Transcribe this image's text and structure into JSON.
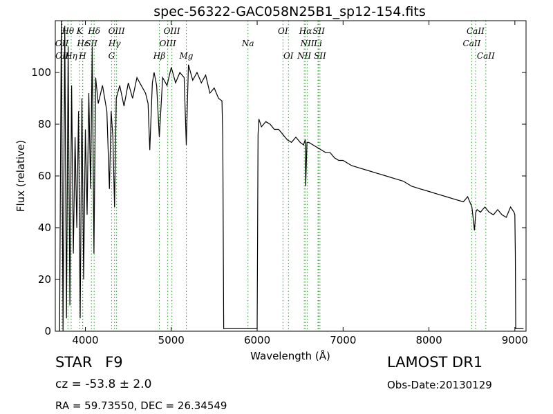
{
  "chart_data": {
    "type": "line",
    "title": "spec-56322-GAC058N25B1_sp12-154.fits",
    "xlabel": "Wavelength (Å)",
    "ylabel": "Flux (relative)",
    "xlim": [
      3650,
      9130
    ],
    "ylim": [
      0,
      120
    ],
    "xticks": [
      4000,
      5000,
      6000,
      7000,
      8000,
      9000
    ],
    "yticks": [
      0,
      20,
      40,
      60,
      80,
      100
    ],
    "grid": false,
    "line_color": "#000000",
    "marker_color": "#2ca02c",
    "emission_lines_top": [
      {
        "label": "Hθ",
        "x": 3797,
        "row": 1
      },
      {
        "label": "K",
        "x": 3934,
        "row": 1
      },
      {
        "label": "Hδ",
        "x": 4102,
        "row": 1
      },
      {
        "label": "OIII",
        "x": 4363,
        "row": 1
      },
      {
        "label": "OIII",
        "x": 5007,
        "row": 1
      },
      {
        "label": "OI",
        "x": 6300,
        "row": 1
      },
      {
        "label": "Hα",
        "x": 6563,
        "row": 1
      },
      {
        "label": "SII",
        "x": 6716,
        "row": 1
      },
      {
        "label": "CaII",
        "x": 8542,
        "row": 1
      },
      {
        "label": "OII",
        "x": 3727,
        "row": 2
      },
      {
        "label": "Hε",
        "x": 3970,
        "row": 2
      },
      {
        "label": "SII",
        "x": 4070,
        "row": 2
      },
      {
        "label": "Hγ",
        "x": 4340,
        "row": 2
      },
      {
        "label": "OIII",
        "x": 4959,
        "row": 2
      },
      {
        "label": "NII",
        "x": 6584,
        "row": 2
      },
      {
        "label": "Li",
        "x": 6708,
        "row": 2
      },
      {
        "label": "CaII",
        "x": 8498,
        "row": 2
      },
      {
        "label": "Na",
        "x": 5893,
        "row": 2
      },
      {
        "label": "OII",
        "x": 3729,
        "row": 3
      },
      {
        "label": "Hη",
        "x": 3835,
        "row": 3
      },
      {
        "label": "H",
        "x": 3968,
        "row": 3
      },
      {
        "label": "G",
        "x": 4305,
        "row": 3
      },
      {
        "label": "Hβ",
        "x": 4861,
        "row": 3
      },
      {
        "label": "Mg",
        "x": 5175,
        "row": 3
      },
      {
        "label": "OI",
        "x": 6364,
        "row": 3
      },
      {
        "label": "NII",
        "x": 6548,
        "row": 3
      },
      {
        "label": "SII",
        "x": 6731,
        "row": 3
      },
      {
        "label": "CaII",
        "x": 8662,
        "row": 3
      }
    ],
    "line_positions": [
      3727,
      3729,
      3797,
      3835,
      3934,
      3968,
      3970,
      4070,
      4102,
      4305,
      4340,
      4363,
      4861,
      4959,
      5007,
      5175,
      5893,
      6300,
      6364,
      6548,
      6563,
      6584,
      6708,
      6716,
      6731,
      8498,
      8542,
      8662
    ],
    "series": [
      {
        "x": [
          3700,
          3720,
          3740,
          3760,
          3780,
          3800,
          3820,
          3840,
          3860,
          3880,
          3900,
          3920,
          3940,
          3960,
          3980,
          4000,
          4020,
          4040,
          4060,
          4080,
          4100,
          4120,
          4150,
          4200,
          4250,
          4280,
          4300,
          4320,
          4340,
          4360,
          4400,
          4450,
          4500,
          4550,
          4600,
          4650,
          4700,
          4730,
          4750,
          4780,
          4800,
          4830,
          4861,
          4900,
          4950,
          5000,
          5050,
          5100,
          5150,
          5175,
          5200,
          5250,
          5300,
          5350,
          5400,
          5450,
          5500,
          5550,
          5590,
          5600,
          5610,
          5650,
          5700,
          5800,
          5900,
          6000,
          6005,
          6010,
          6020,
          6050,
          6100,
          6150,
          6200,
          6250,
          6300,
          6350,
          6400,
          6450,
          6500,
          6540,
          6560,
          6565,
          6580,
          6600,
          6650,
          6700,
          6750,
          6800,
          6850,
          6900,
          6950,
          7000,
          7100,
          7200,
          7300,
          7400,
          7500,
          7600,
          7700,
          7800,
          7900,
          8000,
          8100,
          8200,
          8300,
          8400,
          8450,
          8500,
          8530,
          8545,
          8560,
          8600,
          8650,
          8700,
          8750,
          8800,
          8850,
          8900,
          8950,
          8990,
          9000,
          9005,
          9010,
          9050,
          9100
        ],
        "y": [
          0,
          120,
          0,
          118,
          5,
          110,
          10,
          95,
          30,
          75,
          40,
          85,
          5,
          90,
          20,
          78,
          45,
          92,
          55,
          110,
          30,
          98,
          88,
          95,
          85,
          55,
          85,
          75,
          48,
          90,
          95,
          87,
          96,
          90,
          98,
          95,
          92,
          88,
          70,
          96,
          100,
          95,
          75,
          98,
          95,
          102,
          96,
          100,
          98,
          72,
          103,
          97,
          100,
          96,
          99,
          92,
          94,
          90,
          89,
          75,
          1,
          1,
          1,
          1,
          1,
          1,
          40,
          76,
          82,
          79,
          81,
          80,
          78,
          78,
          76,
          74,
          73,
          75,
          73,
          72,
          74,
          56,
          73,
          73,
          72,
          71,
          70,
          69,
          69,
          67,
          66,
          66,
          64,
          63,
          62,
          61,
          60,
          59,
          58,
          56,
          55,
          54,
          53,
          52,
          51,
          50,
          52,
          48,
          39,
          46,
          47,
          46,
          48,
          46,
          45,
          47,
          45,
          44,
          48,
          46,
          45,
          30,
          1,
          1,
          1
        ]
      }
    ]
  },
  "info": {
    "object_type": "STAR",
    "subclass": "F9",
    "redshift": "cz = -53.8  ± 2.0",
    "coords": "RA = 59.73550, DEC = 26.34549",
    "survey": "LAMOST DR1",
    "obs_date": "Obs-Date:20130129"
  }
}
